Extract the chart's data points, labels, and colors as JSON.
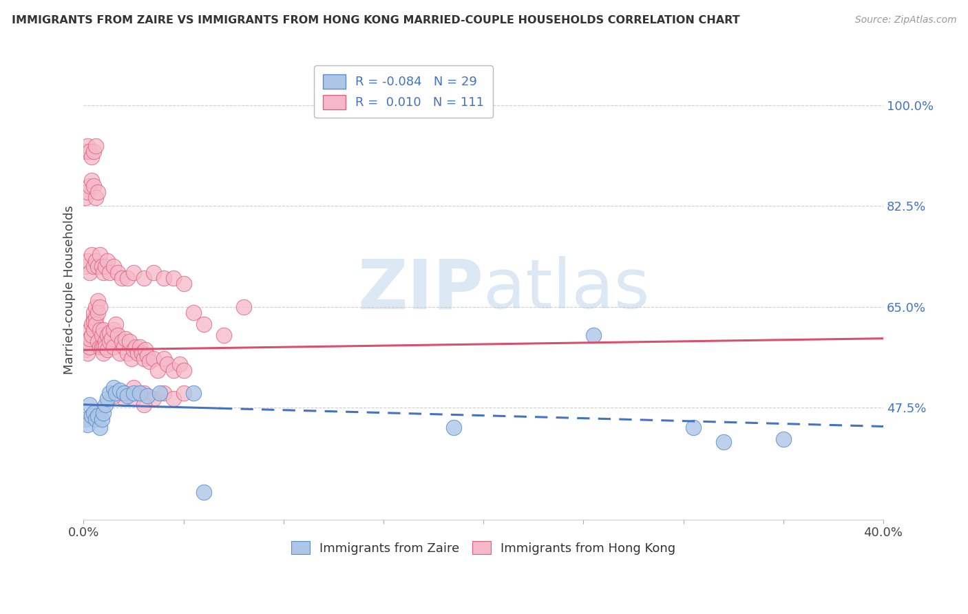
{
  "title": "IMMIGRANTS FROM ZAIRE VS IMMIGRANTS FROM HONG KONG MARRIED-COUPLE HOUSEHOLDS CORRELATION CHART",
  "source": "Source: ZipAtlas.com",
  "ylabel": "Married-couple Households",
  "xlim": [
    0.0,
    0.4
  ],
  "ylim": [
    0.28,
    1.08
  ],
  "yticks": [
    0.475,
    0.65,
    0.825,
    1.0
  ],
  "ytick_labels": [
    "47.5%",
    "65.0%",
    "82.5%",
    "100.0%"
  ],
  "xticks": [
    0.0,
    0.05,
    0.1,
    0.15,
    0.2,
    0.25,
    0.3,
    0.35,
    0.4
  ],
  "xtick_labels_show": [
    "0.0%",
    "",
    "",
    "",
    "",
    "",
    "",
    "",
    "40.0%"
  ],
  "legend_R_zaire": "-0.084",
  "legend_N_zaire": "29",
  "legend_R_hk": "0.010",
  "legend_N_hk": "111",
  "color_zaire_fill": "#adc6e8",
  "color_zaire_edge": "#5b8dc8",
  "color_hk_fill": "#f5b8c8",
  "color_hk_edge": "#e06080",
  "trend_color_zaire": "#4472c4",
  "trend_color_hk": "#d94f6e",
  "watermark_zip": "ZIP",
  "watermark_atlas": "atlas",
  "background_color": "#ffffff",
  "zaire_x": [
    0.001,
    0.002,
    0.003,
    0.004,
    0.005,
    0.006,
    0.007,
    0.008,
    0.009,
    0.01,
    0.011,
    0.012,
    0.013,
    0.015,
    0.016,
    0.018,
    0.02,
    0.022,
    0.025,
    0.028,
    0.032,
    0.038,
    0.055,
    0.06,
    0.255,
    0.305,
    0.32,
    0.35,
    0.185
  ],
  "zaire_y": [
    0.455,
    0.445,
    0.48,
    0.46,
    0.465,
    0.455,
    0.46,
    0.44,
    0.455,
    0.465,
    0.48,
    0.49,
    0.5,
    0.51,
    0.5,
    0.505,
    0.5,
    0.495,
    0.5,
    0.5,
    0.495,
    0.5,
    0.5,
    0.328,
    0.6,
    0.44,
    0.415,
    0.42,
    0.44
  ],
  "hk_x": [
    0.001,
    0.002,
    0.002,
    0.003,
    0.003,
    0.003,
    0.004,
    0.004,
    0.005,
    0.005,
    0.005,
    0.005,
    0.006,
    0.006,
    0.006,
    0.007,
    0.007,
    0.007,
    0.008,
    0.008,
    0.008,
    0.009,
    0.009,
    0.01,
    0.01,
    0.01,
    0.011,
    0.011,
    0.012,
    0.012,
    0.013,
    0.013,
    0.014,
    0.015,
    0.015,
    0.016,
    0.017,
    0.018,
    0.019,
    0.02,
    0.021,
    0.022,
    0.023,
    0.024,
    0.025,
    0.026,
    0.027,
    0.028,
    0.029,
    0.03,
    0.031,
    0.032,
    0.033,
    0.035,
    0.037,
    0.04,
    0.042,
    0.045,
    0.048,
    0.05,
    0.001,
    0.002,
    0.003,
    0.004,
    0.005,
    0.006,
    0.007,
    0.008,
    0.009,
    0.01,
    0.011,
    0.012,
    0.013,
    0.015,
    0.017,
    0.019,
    0.022,
    0.025,
    0.03,
    0.035,
    0.04,
    0.045,
    0.05,
    0.001,
    0.002,
    0.003,
    0.004,
    0.005,
    0.006,
    0.007,
    0.001,
    0.002,
    0.003,
    0.004,
    0.005,
    0.006,
    0.055,
    0.06,
    0.07,
    0.08,
    0.02,
    0.025,
    0.03,
    0.035,
    0.04,
    0.045,
    0.05,
    0.015,
    0.02,
    0.025,
    0.03
  ],
  "hk_y": [
    0.575,
    0.57,
    0.59,
    0.58,
    0.61,
    0.595,
    0.6,
    0.62,
    0.63,
    0.64,
    0.61,
    0.625,
    0.65,
    0.63,
    0.62,
    0.66,
    0.64,
    0.59,
    0.61,
    0.58,
    0.65,
    0.58,
    0.6,
    0.58,
    0.61,
    0.57,
    0.59,
    0.58,
    0.6,
    0.575,
    0.59,
    0.605,
    0.595,
    0.61,
    0.58,
    0.62,
    0.6,
    0.57,
    0.59,
    0.58,
    0.595,
    0.57,
    0.59,
    0.56,
    0.575,
    0.58,
    0.57,
    0.58,
    0.57,
    0.56,
    0.575,
    0.565,
    0.555,
    0.56,
    0.54,
    0.56,
    0.55,
    0.54,
    0.55,
    0.54,
    0.72,
    0.73,
    0.71,
    0.74,
    0.72,
    0.73,
    0.72,
    0.74,
    0.72,
    0.71,
    0.72,
    0.73,
    0.71,
    0.72,
    0.71,
    0.7,
    0.7,
    0.71,
    0.7,
    0.71,
    0.7,
    0.7,
    0.69,
    0.84,
    0.85,
    0.86,
    0.87,
    0.86,
    0.84,
    0.85,
    0.92,
    0.93,
    0.92,
    0.91,
    0.92,
    0.93,
    0.64,
    0.62,
    0.6,
    0.65,
    0.49,
    0.51,
    0.5,
    0.49,
    0.5,
    0.49,
    0.5,
    0.495,
    0.5,
    0.49,
    0.48
  ],
  "trend_zaire_x0": 0.0,
  "trend_zaire_y0": 0.48,
  "trend_zaire_x1": 0.4,
  "trend_zaire_y1": 0.442,
  "trend_zaire_solid_end": 0.068,
  "trend_hk_x0": 0.0,
  "trend_hk_y0": 0.575,
  "trend_hk_x1": 0.4,
  "trend_hk_y1": 0.595
}
